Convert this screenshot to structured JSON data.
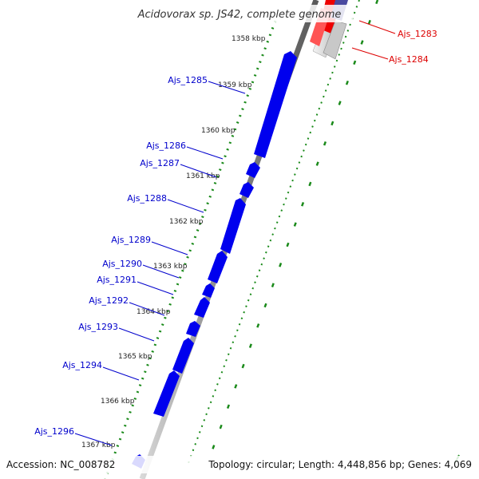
{
  "title": "Acidovorax sp. JS42, complete genome",
  "accession_label": "Accession: NC_008782",
  "topology_label": "Topology: circular; Length: 4,448,856 bp; Genes: 4,069",
  "colors": {
    "forward_gene": "#0000ee",
    "reverse_gene": "#ee0000",
    "forward_label": "#0000cc",
    "reverse_label": "#dd0000",
    "ruler_dots": "#1a8a1a",
    "backbone": "#888888"
  },
  "kbp_ticks": [
    "1358 kbp",
    "1359 kbp",
    "1360 kbp",
    "1361 kbp",
    "1362 kbp",
    "1363 kbp",
    "1364 kbp",
    "1365 kbp",
    "1366 kbp",
    "1367 kbp"
  ],
  "forward_genes": [
    "Ajs_1285",
    "Ajs_1286",
    "Ajs_1287",
    "Ajs_1288",
    "Ajs_1289",
    "Ajs_1290",
    "Ajs_1291",
    "Ajs_1292",
    "Ajs_1293",
    "Ajs_1294",
    "Ajs_1296"
  ],
  "reverse_genes": [
    "Ajs_1283",
    "Ajs_1284"
  ]
}
